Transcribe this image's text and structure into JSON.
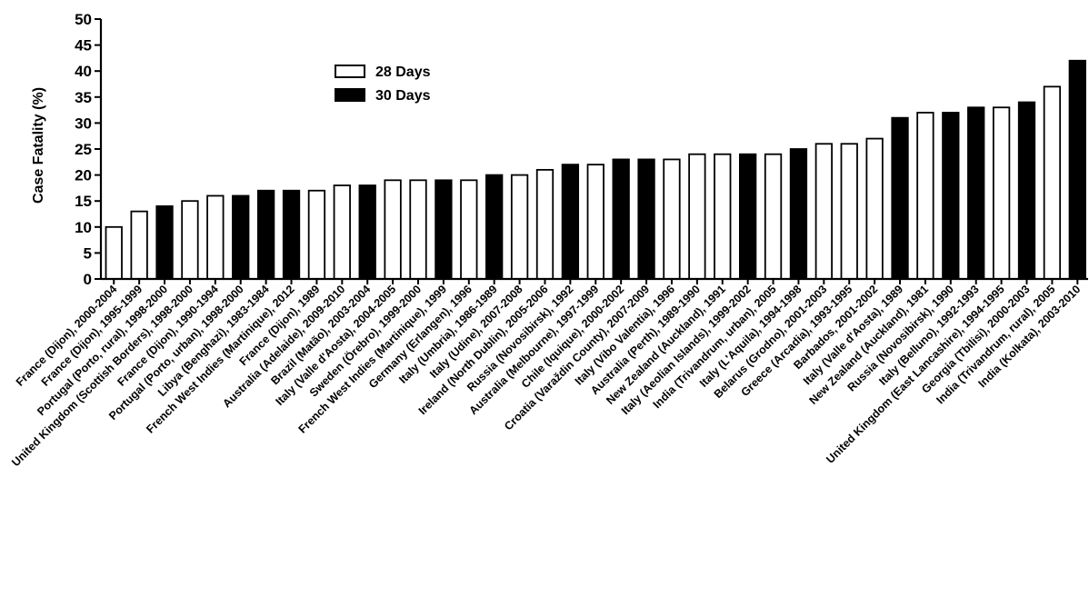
{
  "colors": {
    "28 Days": "#ffffff",
    "30 Days": "#000000",
    "outline": "#000000"
  },
  "chart_data": {
    "type": "bar",
    "title": "",
    "xlabel": "",
    "ylabel": "Case Fatality (%)",
    "ylim": [
      0,
      50
    ],
    "yticks": [
      0,
      5,
      10,
      15,
      20,
      25,
      30,
      35,
      40,
      45,
      50
    ],
    "grid": false,
    "legend_position": "top-left",
    "legend": [
      "28 Days",
      "30 Days"
    ],
    "bars": [
      {
        "label": "France (Dijon), 2000-2004",
        "value": 10,
        "series": "28 Days"
      },
      {
        "label": "France (Dijon), 1995-1999",
        "value": 13,
        "series": "28 Days"
      },
      {
        "label": "Portugal (Porto, rural), 1998-2000",
        "value": 14,
        "series": "30 Days"
      },
      {
        "label": "United Kingdom (Scottish Borders), 1998-2000",
        "value": 15,
        "series": "28 Days"
      },
      {
        "label": "France (Dijon), 1990-1994",
        "value": 16,
        "series": "28 Days"
      },
      {
        "label": "Portugal (Porto, urban), 1998-2000",
        "value": 16,
        "series": "30 Days"
      },
      {
        "label": "Libya (Benghazi), 1983-1984",
        "value": 17,
        "series": "30 Days"
      },
      {
        "label": "French West Indies (Martinique), 2012",
        "value": 17,
        "series": "30 Days"
      },
      {
        "label": "France (Dijon), 1989",
        "value": 17,
        "series": "28 Days"
      },
      {
        "label": "Australia (Adelaide), 2009-2010",
        "value": 18,
        "series": "28 Days"
      },
      {
        "label": "Brazil (Matão), 2003-2004",
        "value": 18,
        "series": "30 Days"
      },
      {
        "label": "Italy (Valle d'Aosta), 2004-2005",
        "value": 19,
        "series": "28 Days"
      },
      {
        "label": "Sweden (Örebro), 1999-2000",
        "value": 19,
        "series": "28 Days"
      },
      {
        "label": "French West Indies (Martinique), 1999",
        "value": 19,
        "series": "30 Days"
      },
      {
        "label": "Germany (Erlangen), 1996",
        "value": 19,
        "series": "28 Days"
      },
      {
        "label": "Italy (Umbria), 1986-1989",
        "value": 20,
        "series": "30 Days"
      },
      {
        "label": "Italy (Udine), 2007-2008",
        "value": 20,
        "series": "28 Days"
      },
      {
        "label": "Ireland (North Dublin), 2005-2006",
        "value": 21,
        "series": "28 Days"
      },
      {
        "label": "Russia (Novosibirsk), 1992",
        "value": 22,
        "series": "30 Days"
      },
      {
        "label": "Australia (Melbourne), 1997-1999",
        "value": 22,
        "series": "28 Days"
      },
      {
        "label": "Chile (Iquique), 2000-2002",
        "value": 23,
        "series": "30 Days"
      },
      {
        "label": "Croatia (Varaždin County), 2007-2009",
        "value": 23,
        "series": "30 Days"
      },
      {
        "label": "Italy (Vibo Valentia), 1996",
        "value": 23,
        "series": "28 Days"
      },
      {
        "label": "Australia (Perth), 1989-1990",
        "value": 24,
        "series": "28 Days"
      },
      {
        "label": "New Zealand (Auckland), 1991",
        "value": 24,
        "series": "28 Days"
      },
      {
        "label": "Italy (Aeolian Islands), 1999-2002",
        "value": 24,
        "series": "30 Days"
      },
      {
        "label": "India (Trivandrum, urban), 2005",
        "value": 24,
        "series": "28 Days"
      },
      {
        "label": "Italy (L'Aquila), 1994-1998",
        "value": 25,
        "series": "30 Days"
      },
      {
        "label": "Belarus (Grodno), 2001-2003",
        "value": 26,
        "series": "28 Days"
      },
      {
        "label": "Greece (Arcadia), 1993-1995",
        "value": 26,
        "series": "28 Days"
      },
      {
        "label": "Barbados, 2001-2002",
        "value": 27,
        "series": "28 Days"
      },
      {
        "label": "Italy (Valle d'Aosta), 1989",
        "value": 31,
        "series": "30 Days"
      },
      {
        "label": "New Zealand (Auckland), 1981",
        "value": 32,
        "series": "28 Days"
      },
      {
        "label": "Russia (Novosibirsk), 1990",
        "value": 32,
        "series": "30 Days"
      },
      {
        "label": "Italy (Belluno), 1992-1993",
        "value": 33,
        "series": "30 Days"
      },
      {
        "label": "United Kingdom (East Lancashire), 1994-1995",
        "value": 33,
        "series": "28 Days"
      },
      {
        "label": "Georgia (Tbilisi), 2000-2003",
        "value": 34,
        "series": "30 Days"
      },
      {
        "label": "India (Trivandrum, rural), 2005",
        "value": 37,
        "series": "28 Days"
      },
      {
        "label": "India (Kolkata), 2003-2010",
        "value": 42,
        "series": "30 Days"
      }
    ]
  }
}
